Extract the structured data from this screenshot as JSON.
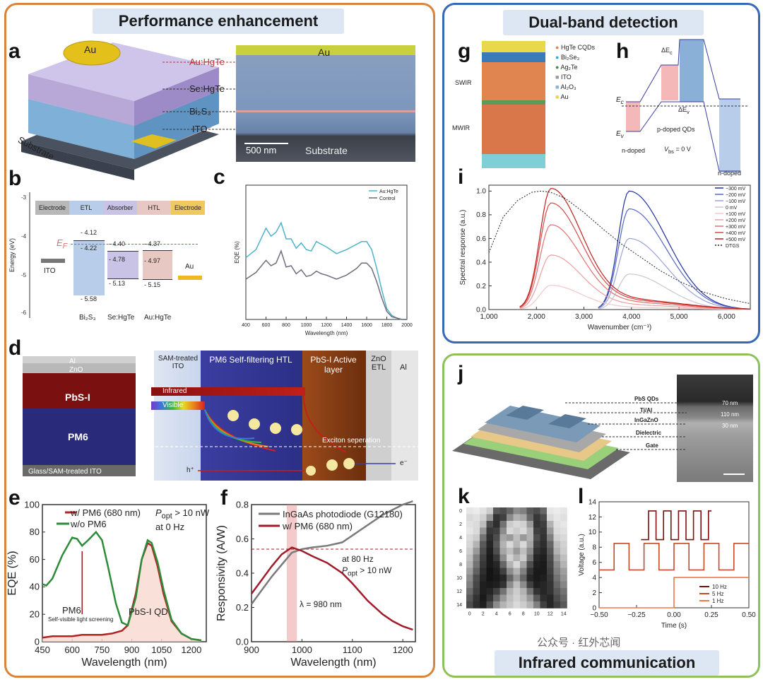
{
  "sections": {
    "left_title": "Performance enhancement",
    "right_top_title": "Dual-band detection",
    "right_bottom_title": "Infrared communication"
  },
  "panel_labels": {
    "a": "a",
    "b": "b",
    "c": "c",
    "d": "d",
    "e": "e",
    "f": "f",
    "g": "g",
    "h": "h",
    "i": "i",
    "j": "j",
    "k": "k",
    "l": "l"
  },
  "panel_a": {
    "au": "Au",
    "au_hgte": "Au:HgTe",
    "se_hgte": "Se:HgTe",
    "bi2s3": "Bi₂S₃",
    "ito": "ITO",
    "substrate": "Substrate",
    "sem_au": "Au",
    "scale": "500 nm",
    "sem_substrate": "Substrate"
  },
  "panel_b": {
    "header": [
      "Electrode",
      "ETL",
      "Absorber",
      "HTL",
      "Electrode"
    ],
    "ylabel": "Energy (eV)",
    "yticks": [
      "-3",
      "-4",
      "-5",
      "-6"
    ],
    "ef": "E",
    "ef_sub": "F",
    "ito": "ITO",
    "au": "Au",
    "bi2s3_levels": [
      "- 4.12",
      "- 4.22",
      "- 5.58"
    ],
    "sehgte_levels": [
      "- 4.40",
      "- 4.78",
      "- 5.13"
    ],
    "auhgte_levels": [
      "- 4.37",
      "- 4.97",
      "- 5.15"
    ],
    "materials": [
      "Bi₂S₃",
      "Se:HgTe",
      "Au:HgTe"
    ]
  },
  "panel_d": {
    "layers": [
      "Al",
      "ZnO",
      "PbS-I",
      "PM6",
      "Glass/SAM-treated ITO"
    ],
    "band_titles": [
      "SAM-treated ITO",
      "PM6 Self-filtering HTL",
      "PbS-I Active layer",
      "ZnO ETL",
      "Al"
    ],
    "infrared": "Infrared",
    "visible": "Visible",
    "exciton": "Exciton seperation",
    "hplus": "h⁺",
    "eminus": "e⁻"
  },
  "panel_e_text": {
    "legend1": "w/ PM6 (680 nm)",
    "legend2": "w/o PM6",
    "popt": "P",
    "popt_sub": "opt",
    "popt_val": " > 10 nW",
    "freq": "at 0 Hz",
    "pm6": "PM6",
    "pm6_note": "Self-visible light screening",
    "pbs": "PbS-I QD"
  },
  "panel_f_text": {
    "legend1": "InGaAs photodiode (G12180)",
    "legend2": "w/ PM6 (680 nm)",
    "freq": "at 80 Hz",
    "popt": "P",
    "popt_sub": "opt",
    "popt_val": " > 10 nW",
    "lambda": "λ = 980 nm"
  },
  "panel_g": {
    "legend": [
      "HgTe CQDs",
      "Bi₂Se₃",
      "Ag₂Te",
      "ITO",
      "Al₂O₃",
      "Au"
    ],
    "swir": "SWIR",
    "mwir": "MWIR"
  },
  "panel_h": {
    "ec": "E",
    "ec_sub": "c",
    "ev": "E",
    "ev_sub": "v",
    "dEc": "ΔE",
    "dEc_sub": "c",
    "dEv": "ΔE",
    "dEv_sub": "v",
    "p_doped": "p-doped QDs",
    "n_doped_left": "n-doped",
    "n_doped_right": "n-doped",
    "vbs": "V",
    "vbs_sub": "bs",
    "vbs_val": " = 0 V"
  },
  "panel_j": {
    "labels": [
      "PbS QDs",
      "Ti/Al",
      "InGaZnO",
      "Dielectric",
      "Gate"
    ],
    "thickness": [
      "70 nm",
      "110 nm",
      "30 nm"
    ]
  },
  "panel_k": {
    "ticks": [
      "0",
      "2",
      "4",
      "6",
      "8",
      "10",
      "12",
      "14"
    ]
  },
  "watermark": "公众号 · 红外芯闻",
  "chart_data": [
    {
      "id": "c",
      "type": "line",
      "xlabel": "Wavelength (nm)",
      "ylabel": "EQE (%)",
      "xlim": [
        400,
        2000
      ],
      "xticks": [
        400,
        600,
        800,
        1000,
        1200,
        1400,
        1600,
        1800,
        2000
      ],
      "series": [
        {
          "name": "Au:HgTe",
          "color": "#4fb3c8",
          "x": [
            400,
            500,
            600,
            650,
            700,
            750,
            800,
            850,
            900,
            950,
            1000,
            1050,
            1100,
            1150,
            1200,
            1300,
            1400,
            1500,
            1550,
            1600,
            1650,
            1700,
            1750,
            1800,
            1850,
            1900,
            1950,
            2000
          ],
          "y": [
            46,
            52,
            68,
            62,
            65,
            72,
            60,
            60,
            53,
            57,
            52,
            51,
            58,
            56,
            54,
            49,
            52,
            56,
            58,
            58,
            52,
            38,
            22,
            8,
            3,
            1,
            0,
            0
          ]
        },
        {
          "name": "Control",
          "color": "#6e6e7c",
          "x": [
            400,
            500,
            600,
            650,
            700,
            750,
            800,
            850,
            900,
            950,
            1000,
            1050,
            1100,
            1150,
            1200,
            1300,
            1400,
            1500,
            1550,
            1600,
            1650,
            1700,
            1750,
            1800,
            1850,
            1900,
            1950,
            2000
          ],
          "y": [
            30,
            35,
            44,
            40,
            42,
            51,
            39,
            40,
            34,
            37,
            32,
            33,
            36,
            34,
            33,
            30,
            33,
            38,
            42,
            42,
            38,
            28,
            16,
            6,
            2,
            1,
            0,
            0
          ]
        }
      ]
    },
    {
      "id": "e",
      "type": "line",
      "xlabel": "Wavelength (nm)",
      "ylabel": "EQE (%)",
      "xlim": [
        450,
        1275
      ],
      "ylim": [
        0,
        100
      ],
      "xticks": [
        450,
        600,
        750,
        900,
        1050,
        1200
      ],
      "yticks": [
        0,
        20,
        40,
        60,
        80,
        100
      ],
      "series": [
        {
          "name": "w/ PM6 (680 nm)",
          "color": "#b22222",
          "x": [
            450,
            500,
            550,
            600,
            650,
            700,
            750,
            800,
            850,
            880,
            920,
            950,
            980,
            1000,
            1030,
            1060,
            1100,
            1150,
            1200,
            1250
          ],
          "y": [
            3,
            4,
            4,
            4,
            5,
            5,
            5,
            6,
            8,
            12,
            35,
            60,
            72,
            70,
            55,
            35,
            15,
            6,
            2,
            1
          ]
        },
        {
          "name": "w/o PM6",
          "color": "#2e8b3a",
          "x": [
            450,
            470,
            500,
            550,
            600,
            625,
            650,
            680,
            720,
            750,
            780,
            820,
            850,
            880,
            920,
            950,
            980,
            1000,
            1030,
            1060,
            1100,
            1150,
            1200,
            1250
          ],
          "y": [
            42,
            41,
            46,
            63,
            76,
            75,
            70,
            74,
            80,
            74,
            55,
            28,
            14,
            12,
            32,
            60,
            74,
            72,
            58,
            38,
            16,
            6,
            2,
            1
          ]
        }
      ]
    },
    {
      "id": "f",
      "type": "line",
      "xlabel": "Wavelength (nm)",
      "ylabel": "Responsivity (A/W)",
      "xlim": [
        900,
        1225
      ],
      "ylim": [
        0,
        0.8
      ],
      "xticks": [
        900,
        1000,
        1100,
        1200
      ],
      "yticks": [
        0.0,
        0.2,
        0.4,
        0.6,
        0.8
      ],
      "hline": 0.54,
      "series": [
        {
          "name": "InGaAs photodiode (G12180)",
          "color": "#7a7a7a",
          "x": [
            900,
            920,
            940,
            960,
            980,
            1000,
            1020,
            1050,
            1080,
            1100,
            1130,
            1160,
            1180,
            1200,
            1220
          ],
          "y": [
            0.22,
            0.3,
            0.38,
            0.45,
            0.52,
            0.54,
            0.55,
            0.56,
            0.58,
            0.62,
            0.68,
            0.74,
            0.77,
            0.8,
            0.82
          ]
        },
        {
          "name": "w/ PM6 (680 nm)",
          "color": "#a01c2a",
          "x": [
            900,
            920,
            940,
            960,
            980,
            1000,
            1020,
            1050,
            1080,
            1100,
            1130,
            1160,
            1180,
            1200,
            1220
          ],
          "y": [
            0.28,
            0.36,
            0.44,
            0.51,
            0.55,
            0.53,
            0.5,
            0.46,
            0.4,
            0.34,
            0.24,
            0.16,
            0.12,
            0.09,
            0.07
          ]
        }
      ]
    },
    {
      "id": "i",
      "type": "line",
      "xlabel": "Wavenumber (cm⁻¹)",
      "ylabel": "Spectral response (a.u.)",
      "xlim": [
        1000,
        6500
      ],
      "ylim": [
        0,
        1.05
      ],
      "xticks": [
        1000,
        2000,
        3000,
        4000,
        5000,
        6000
      ],
      "xtick_labels": [
        "1,000",
        "2,000",
        "3,000",
        "4,000",
        "5,000",
        "6,000"
      ],
      "yticks": [
        0.0,
        0.2,
        0.4,
        0.6,
        0.8,
        1.0
      ],
      "legend": [
        "−300 mV",
        "−200 mV",
        "−100 mV",
        "0 mV",
        "+100 mV",
        "+200 mV",
        "+300 mV",
        "+400 mV",
        "+500 mV",
        "DTGS"
      ],
      "series": [
        {
          "name": "−300 mV",
          "color": "#1f2fa0",
          "peak_x": 3950,
          "scale": 1.0,
          "type": "blue"
        },
        {
          "name": "−200 mV",
          "color": "#5766c2",
          "peak_x": 3950,
          "scale": 0.85,
          "type": "blue"
        },
        {
          "name": "−100 mV",
          "color": "#9aa3da",
          "peak_x": 3950,
          "scale": 0.6,
          "type": "blue"
        },
        {
          "name": "0 mV",
          "color": "#c8c8d2",
          "peak_x": 3950,
          "scale": 0.3,
          "type": "blue"
        },
        {
          "name": "+100 mV",
          "color": "#f2c8c8",
          "peak_x": 2300,
          "scale": 0.2,
          "type": "red"
        },
        {
          "name": "+200 mV",
          "color": "#eaa0a0",
          "peak_x": 2300,
          "scale": 0.45,
          "type": "red"
        },
        {
          "name": "+300 mV",
          "color": "#e07070",
          "peak_x": 2300,
          "scale": 0.7,
          "type": "red"
        },
        {
          "name": "+400 mV",
          "color": "#d24a4a",
          "peak_x": 2300,
          "scale": 0.88,
          "type": "red"
        },
        {
          "name": "+500 mV",
          "color": "#c0201a",
          "peak_x": 2300,
          "scale": 1.0,
          "type": "red"
        },
        {
          "name": "DTGS",
          "color": "#222222",
          "dashed": true,
          "x": [
            1000,
            1300,
            1600,
            1900,
            2100,
            2300,
            2600,
            3000,
            3400,
            3800,
            4200,
            4600,
            5000,
            5500,
            6000,
            6500
          ],
          "y": [
            0.48,
            0.78,
            0.92,
            0.99,
            1.0,
            0.99,
            0.94,
            0.82,
            0.68,
            0.55,
            0.44,
            0.33,
            0.24,
            0.15,
            0.09,
            0.05
          ]
        }
      ]
    },
    {
      "id": "k",
      "type": "heatmap",
      "rows": 15,
      "cols": 15,
      "note": "Grayscale pixel image (Mona Lisa), values 0 (black) to 1 (white)",
      "values": [
        [
          0.9,
          0.92,
          0.88,
          0.8,
          0.35,
          0.3,
          0.4,
          0.55,
          0.5,
          0.35,
          0.3,
          0.4,
          0.9,
          0.92,
          0.9
        ],
        [
          0.85,
          0.88,
          0.82,
          0.6,
          0.2,
          0.25,
          0.55,
          0.7,
          0.65,
          0.4,
          0.22,
          0.3,
          0.85,
          0.9,
          0.88
        ],
        [
          0.88,
          0.86,
          0.75,
          0.3,
          0.18,
          0.45,
          0.8,
          0.85,
          0.82,
          0.6,
          0.2,
          0.25,
          0.7,
          0.88,
          0.9
        ],
        [
          0.9,
          0.85,
          0.6,
          0.22,
          0.25,
          0.55,
          0.85,
          0.8,
          0.85,
          0.7,
          0.25,
          0.22,
          0.6,
          0.86,
          0.88
        ],
        [
          0.86,
          0.8,
          0.45,
          0.18,
          0.3,
          0.65,
          0.6,
          0.75,
          0.6,
          0.7,
          0.3,
          0.2,
          0.5,
          0.82,
          0.85
        ],
        [
          0.84,
          0.7,
          0.35,
          0.15,
          0.35,
          0.7,
          0.85,
          0.72,
          0.85,
          0.65,
          0.25,
          0.18,
          0.4,
          0.75,
          0.82
        ],
        [
          0.8,
          0.6,
          0.3,
          0.12,
          0.3,
          0.65,
          0.75,
          0.6,
          0.75,
          0.55,
          0.2,
          0.15,
          0.35,
          0.7,
          0.8
        ],
        [
          0.75,
          0.5,
          0.25,
          0.1,
          0.22,
          0.55,
          0.82,
          0.7,
          0.8,
          0.45,
          0.15,
          0.12,
          0.3,
          0.62,
          0.75
        ],
        [
          0.7,
          0.45,
          0.22,
          0.1,
          0.15,
          0.4,
          0.7,
          0.85,
          0.65,
          0.3,
          0.12,
          0.1,
          0.28,
          0.55,
          0.7
        ],
        [
          0.62,
          0.38,
          0.18,
          0.08,
          0.12,
          0.25,
          0.55,
          0.7,
          0.5,
          0.2,
          0.1,
          0.1,
          0.25,
          0.5,
          0.62
        ],
        [
          0.55,
          0.3,
          0.15,
          0.08,
          0.1,
          0.15,
          0.4,
          0.6,
          0.4,
          0.15,
          0.1,
          0.12,
          0.22,
          0.45,
          0.58
        ],
        [
          0.5,
          0.28,
          0.12,
          0.1,
          0.12,
          0.2,
          0.55,
          0.75,
          0.55,
          0.25,
          0.12,
          0.15,
          0.2,
          0.4,
          0.52
        ],
        [
          0.42,
          0.25,
          0.12,
          0.15,
          0.25,
          0.45,
          0.7,
          0.8,
          0.7,
          0.45,
          0.2,
          0.15,
          0.2,
          0.35,
          0.45
        ],
        [
          0.35,
          0.2,
          0.1,
          0.2,
          0.4,
          0.6,
          0.75,
          0.82,
          0.75,
          0.6,
          0.35,
          0.18,
          0.15,
          0.3,
          0.4
        ],
        [
          0.3,
          0.18,
          0.12,
          0.3,
          0.55,
          0.7,
          0.78,
          0.85,
          0.8,
          0.7,
          0.5,
          0.25,
          0.15,
          0.25,
          0.35
        ]
      ]
    },
    {
      "id": "l",
      "type": "line",
      "xlabel": "Time (s)",
      "ylabel": "Voltage (a.u.)",
      "xlim": [
        -0.5,
        0.5
      ],
      "ylim": [
        0,
        14
      ],
      "xticks": [
        -0.5,
        -0.25,
        0.0,
        0.25,
        0.5
      ],
      "xtick_labels": [
        "−0.50",
        "−0.25",
        "0.00",
        "0.25",
        "0.50"
      ],
      "yticks": [
        0,
        2,
        4,
        6,
        8,
        10,
        12,
        14
      ],
      "series": [
        {
          "name": "10 Hz",
          "color": "#7a1010",
          "low": 9.0,
          "high": 12.8,
          "freq": 10,
          "t0": -0.22,
          "t1": 0.25
        },
        {
          "name": "5 Hz",
          "color": "#c64a2a",
          "low": 5.0,
          "high": 8.5,
          "freq": 5,
          "t0": -0.5,
          "t1": 0.5
        },
        {
          "name": "1 Hz",
          "color": "#ef7a4a",
          "low": 0.0,
          "high": 4.0,
          "freq": 1,
          "t0": -0.5,
          "t1": 0.5
        }
      ]
    }
  ]
}
